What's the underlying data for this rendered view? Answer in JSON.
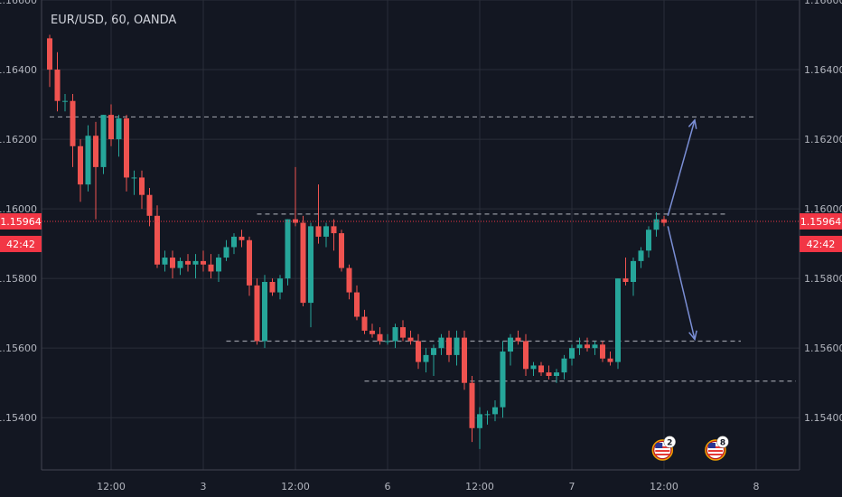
{
  "header": {
    "symbol": "EUR/USD, 60, OANDA"
  },
  "countdown": "42:42",
  "colors": {
    "background": "#131722",
    "grid": "#2a2e39",
    "axis_text": "#b2b5be",
    "up": "#26a69a",
    "down": "#ef5350",
    "price_line": "#f23645",
    "level_line": "#9598a1",
    "arrow": "#7b8fd6"
  },
  "events": [
    {
      "icon": "us-flag-icon",
      "count": "2"
    },
    {
      "icon": "us-flag-icon",
      "count": "8"
    }
  ],
  "chart_data": {
    "type": "candlestick",
    "title": "EUR/USD, 60, OANDA",
    "interval_minutes": 60,
    "ylim": [
      1.1525,
      1.166
    ],
    "y_ticks": [
      "1.16600",
      "1.16400",
      "1.16200",
      "1.16000",
      "1.15800",
      "1.15600",
      "1.15400"
    ],
    "x_ticks": [
      {
        "label": "12:00",
        "at_bar": 8
      },
      {
        "label": "3",
        "at_bar": 20
      },
      {
        "label": "12:00",
        "at_bar": 32
      },
      {
        "label": "6",
        "at_bar": 44
      },
      {
        "label": "12:00",
        "at_bar": 56
      },
      {
        "label": "7",
        "at_bar": 68
      },
      {
        "label": "12:00",
        "at_bar": 80
      },
      {
        "label": "8",
        "at_bar": 92
      }
    ],
    "last_price": "1.15964",
    "last_price_value": 1.15964,
    "grid": true,
    "candles": [
      [
        1.1649,
        1.165,
        1.1635,
        1.164
      ],
      [
        1.164,
        1.1645,
        1.1628,
        1.1631
      ],
      [
        1.1631,
        1.1633,
        1.1628,
        1.1631
      ],
      [
        1.1631,
        1.1633,
        1.1612,
        1.1618
      ],
      [
        1.1618,
        1.162,
        1.1602,
        1.1607
      ],
      [
        1.1607,
        1.1624,
        1.1605,
        1.1621
      ],
      [
        1.1621,
        1.1625,
        1.1597,
        1.1612
      ],
      [
        1.1612,
        1.1627,
        1.161,
        1.1627
      ],
      [
        1.1627,
        1.163,
        1.1618,
        1.162
      ],
      [
        1.162,
        1.1627,
        1.1615,
        1.1626
      ],
      [
        1.1626,
        1.1627,
        1.1605,
        1.1609
      ],
      [
        1.1609,
        1.1611,
        1.1604,
        1.1609
      ],
      [
        1.1609,
        1.1611,
        1.16,
        1.1604
      ],
      [
        1.1604,
        1.1606,
        1.1595,
        1.1598
      ],
      [
        1.1598,
        1.1601,
        1.1583,
        1.1584
      ],
      [
        1.1584,
        1.1588,
        1.1582,
        1.1586
      ],
      [
        1.1586,
        1.1588,
        1.158,
        1.1583
      ],
      [
        1.1583,
        1.1586,
        1.1581,
        1.1585
      ],
      [
        1.1585,
        1.1587,
        1.1582,
        1.1584
      ],
      [
        1.1584,
        1.1587,
        1.158,
        1.1585
      ],
      [
        1.1585,
        1.1588,
        1.1582,
        1.1584
      ],
      [
        1.1584,
        1.1587,
        1.158,
        1.1582
      ],
      [
        1.1582,
        1.1587,
        1.1579,
        1.1586
      ],
      [
        1.1586,
        1.1591,
        1.1585,
        1.1589
      ],
      [
        1.1589,
        1.1593,
        1.1587,
        1.1592
      ],
      [
        1.1592,
        1.1594,
        1.1589,
        1.1591
      ],
      [
        1.1591,
        1.1592,
        1.1575,
        1.1578
      ],
      [
        1.1578,
        1.158,
        1.1561,
        1.1562
      ],
      [
        1.1562,
        1.1581,
        1.156,
        1.1579
      ],
      [
        1.1579,
        1.158,
        1.1575,
        1.1576
      ],
      [
        1.1576,
        1.1581,
        1.1574,
        1.158
      ],
      [
        1.158,
        1.1597,
        1.1578,
        1.1597
      ],
      [
        1.1597,
        1.1612,
        1.1595,
        1.1596
      ],
      [
        1.1596,
        1.1598,
        1.1572,
        1.1573
      ],
      [
        1.1573,
        1.1596,
        1.1566,
        1.1595
      ],
      [
        1.1595,
        1.1607,
        1.159,
        1.1592
      ],
      [
        1.1592,
        1.1596,
        1.1589,
        1.1595
      ],
      [
        1.1595,
        1.1597,
        1.1588,
        1.1593
      ],
      [
        1.1593,
        1.1594,
        1.1582,
        1.1583
      ],
      [
        1.1583,
        1.1584,
        1.1574,
        1.1576
      ],
      [
        1.1576,
        1.1578,
        1.1568,
        1.1569
      ],
      [
        1.1569,
        1.1571,
        1.1564,
        1.1565
      ],
      [
        1.1565,
        1.1567,
        1.1563,
        1.1564
      ],
      [
        1.1564,
        1.1566,
        1.1561,
        1.1562
      ],
      [
        1.1562,
        1.1564,
        1.1561,
        1.1562
      ],
      [
        1.1562,
        1.1567,
        1.156,
        1.1566
      ],
      [
        1.1566,
        1.1568,
        1.1562,
        1.1563
      ],
      [
        1.1563,
        1.1565,
        1.1561,
        1.1562
      ],
      [
        1.1562,
        1.1564,
        1.1554,
        1.1556
      ],
      [
        1.1556,
        1.156,
        1.1553,
        1.1558
      ],
      [
        1.1558,
        1.1561,
        1.1552,
        1.156
      ],
      [
        1.156,
        1.1564,
        1.1558,
        1.1563
      ],
      [
        1.1563,
        1.1565,
        1.1556,
        1.1558
      ],
      [
        1.1558,
        1.1565,
        1.1555,
        1.1563
      ],
      [
        1.1563,
        1.1565,
        1.1548,
        1.155
      ],
      [
        1.155,
        1.1552,
        1.1533,
        1.1537
      ],
      [
        1.1537,
        1.1543,
        1.1531,
        1.1541
      ],
      [
        1.1541,
        1.1542,
        1.1538,
        1.1541
      ],
      [
        1.1541,
        1.1545,
        1.1539,
        1.1543
      ],
      [
        1.1543,
        1.1562,
        1.154,
        1.1559
      ],
      [
        1.1559,
        1.1564,
        1.1555,
        1.1563
      ],
      [
        1.1563,
        1.1565,
        1.1561,
        1.1562
      ],
      [
        1.1562,
        1.1564,
        1.1552,
        1.1554
      ],
      [
        1.1554,
        1.1556,
        1.1552,
        1.1555
      ],
      [
        1.1555,
        1.1556,
        1.1552,
        1.1553
      ],
      [
        1.1553,
        1.1555,
        1.1551,
        1.1552
      ],
      [
        1.1552,
        1.1554,
        1.155,
        1.1553
      ],
      [
        1.1553,
        1.1558,
        1.1551,
        1.1557
      ],
      [
        1.1557,
        1.1561,
        1.1555,
        1.156
      ],
      [
        1.156,
        1.1563,
        1.1558,
        1.1561
      ],
      [
        1.1561,
        1.1563,
        1.1559,
        1.156
      ],
      [
        1.156,
        1.1562,
        1.1558,
        1.1561
      ],
      [
        1.1561,
        1.1562,
        1.1556,
        1.1557
      ],
      [
        1.1557,
        1.1559,
        1.1555,
        1.1556
      ],
      [
        1.1556,
        1.158,
        1.1554,
        1.158
      ],
      [
        1.158,
        1.1586,
        1.1578,
        1.1579
      ],
      [
        1.1579,
        1.1586,
        1.1575,
        1.1585
      ],
      [
        1.1585,
        1.1589,
        1.1583,
        1.1588
      ],
      [
        1.1588,
        1.1595,
        1.1586,
        1.1594
      ],
      [
        1.1594,
        1.1599,
        1.1592,
        1.1597
      ],
      [
        1.1597,
        1.1598,
        1.1595,
        1.1596
      ]
    ],
    "levels": [
      {
        "price": 1.16264,
        "from_bar": 0,
        "to_bar": 92
      },
      {
        "price": 1.15985,
        "from_bar": 27,
        "to_bar": 88
      },
      {
        "price": 1.1562,
        "from_bar": 23,
        "to_bar": 90
      },
      {
        "price": 1.15505,
        "from_bar": 41,
        "to_bar": 100
      }
    ],
    "arrows": [
      {
        "from": [
          80.5,
          1.1598
        ],
        "to": [
          84,
          1.16255
        ]
      },
      {
        "from": [
          80.5,
          1.1595
        ],
        "to": [
          84,
          1.15625
        ]
      }
    ]
  }
}
